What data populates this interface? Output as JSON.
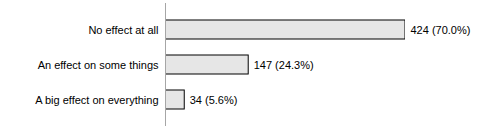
{
  "chart_data": {
    "type": "bar",
    "orientation": "horizontal",
    "categories": [
      "No effect at all",
      "An effect on some things",
      "A big effect on everything"
    ],
    "values": [
      424,
      147,
      34
    ],
    "value_labels": [
      "424 (70.0%)",
      "147 (24.3%)",
      "34 (5.6%)"
    ],
    "color": "#e6e6e6",
    "xlim": [
      0,
      424
    ],
    "data_labels": true,
    "tick_labels": "y",
    "grid": false
  }
}
